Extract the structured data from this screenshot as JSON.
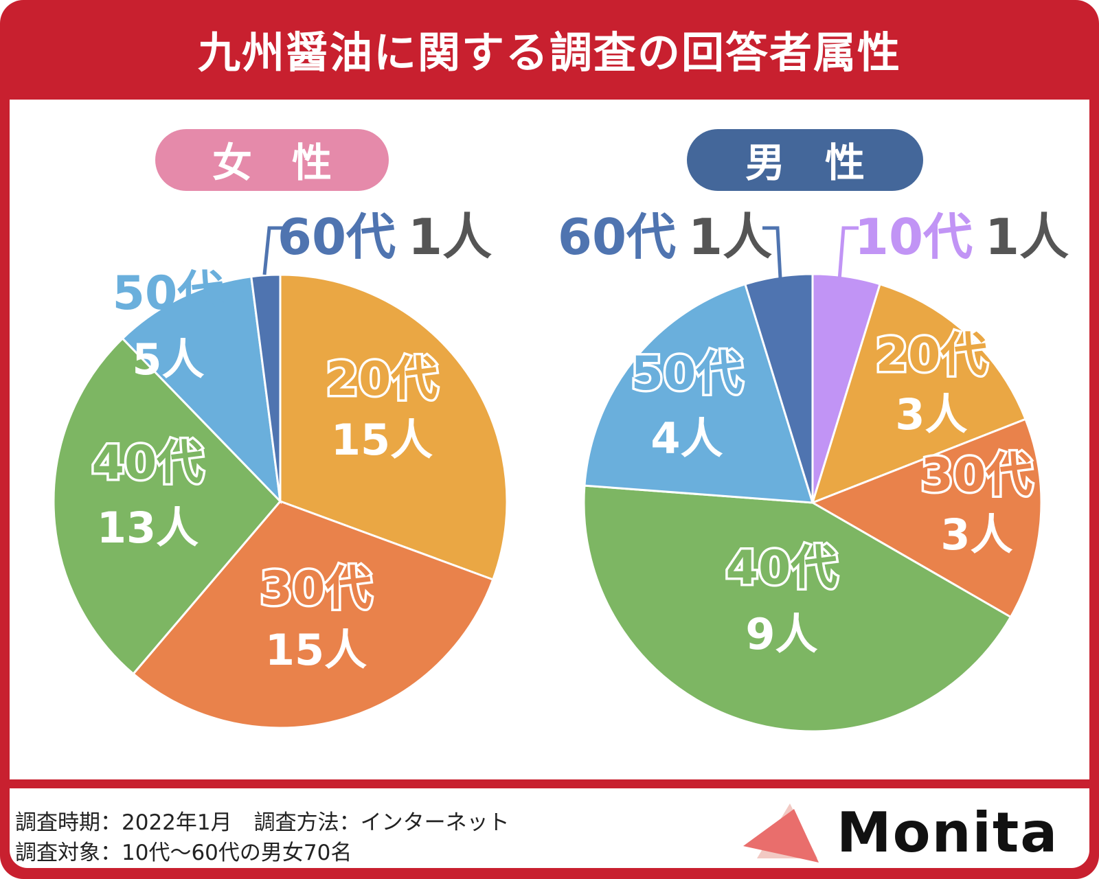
{
  "title": "九州醤油に関する調査の回答者属性",
  "colors": {
    "frame": "#c8202f",
    "female_badge": "#e58aaa",
    "male_badge": "#44679a",
    "age_10s": "#c194f5",
    "age_20s": "#eaa744",
    "age_30s": "#e9824b",
    "age_40s": "#7db663",
    "age_50s": "#6aafdc",
    "age_60s": "#4f74b0",
    "count_gray": "#555555"
  },
  "chart_data": [
    {
      "type": "pie",
      "title": "女　性",
      "series": [
        {
          "name": "20代",
          "count_label": "15人",
          "value": 15,
          "color_key": "age_20s"
        },
        {
          "name": "30代",
          "count_label": "15人",
          "value": 15,
          "color_key": "age_30s"
        },
        {
          "name": "40代",
          "count_label": "13人",
          "value": 13,
          "color_key": "age_40s"
        },
        {
          "name": "50代",
          "count_label": "5人",
          "value": 5,
          "color_key": "age_50s"
        },
        {
          "name": "60代",
          "count_label": "1人",
          "value": 1,
          "color_key": "age_60s"
        }
      ]
    },
    {
      "type": "pie",
      "title": "男　性",
      "series": [
        {
          "name": "10代",
          "count_label": "1人",
          "value": 1,
          "color_key": "age_10s"
        },
        {
          "name": "20代",
          "count_label": "3人",
          "value": 3,
          "color_key": "age_20s"
        },
        {
          "name": "30代",
          "count_label": "3人",
          "value": 3,
          "color_key": "age_30s"
        },
        {
          "name": "40代",
          "count_label": "9人",
          "value": 9,
          "color_key": "age_40s"
        },
        {
          "name": "50代",
          "count_label": "4人",
          "value": 4,
          "color_key": "age_50s"
        },
        {
          "name": "60代",
          "count_label": "1人",
          "value": 1,
          "color_key": "age_60s"
        }
      ]
    }
  ],
  "footer": {
    "period_label": "調査時期：2022年1月",
    "method_label": "調査方法：インターネット",
    "target_label": "調査対象：10代〜60代の男女70名"
  },
  "logo": {
    "text": "Monita"
  }
}
